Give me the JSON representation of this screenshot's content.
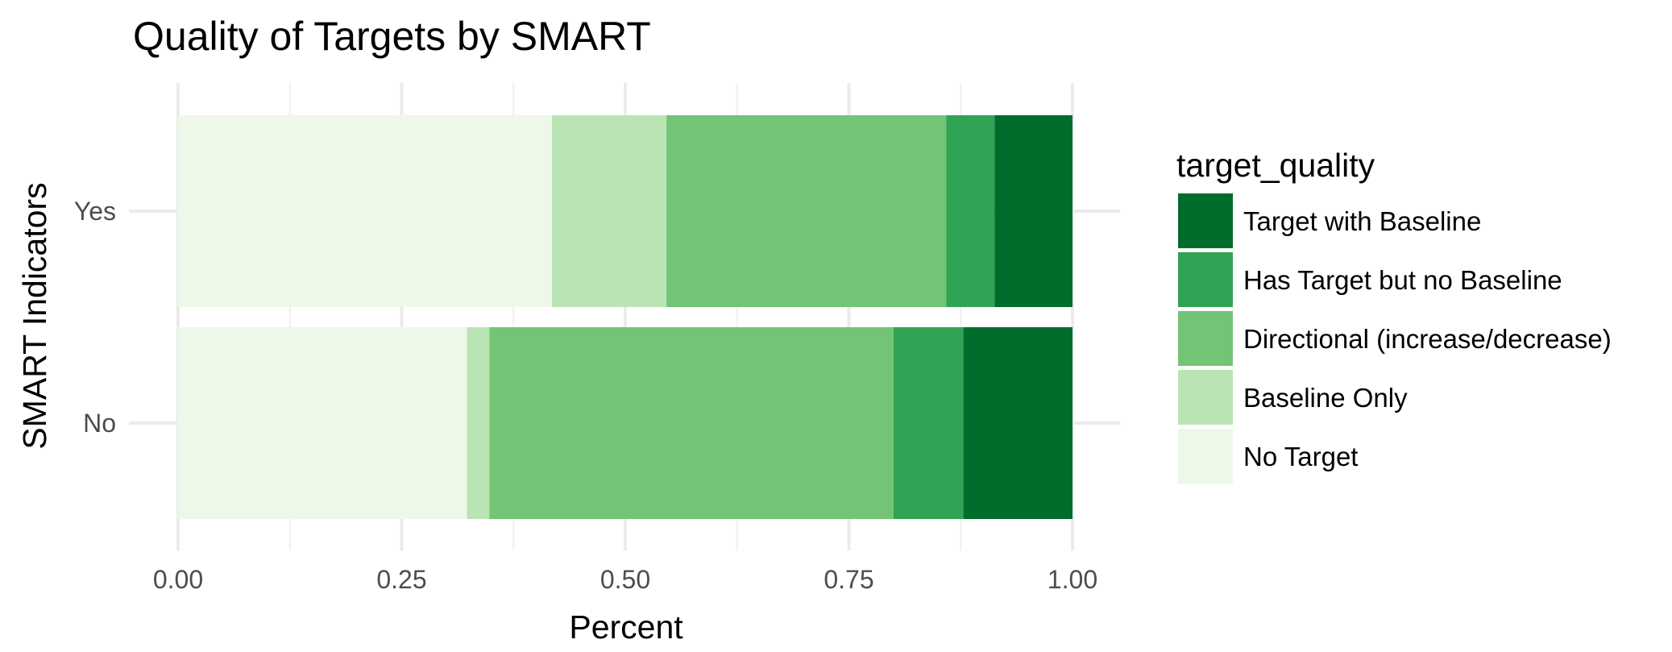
{
  "chart_data": {
    "type": "bar",
    "orientation": "horizontal",
    "stacked": true,
    "title": "Quality of Targets by SMART",
    "xlabel": "Percent",
    "ylabel": "SMART Indicators",
    "xlim": [
      0,
      1
    ],
    "x_ticks": [
      "0.00",
      "0.25",
      "0.50",
      "0.75",
      "1.00"
    ],
    "categories": [
      "Yes",
      "No"
    ],
    "grid": true,
    "legend": {
      "title": "target_quality",
      "position": "right"
    },
    "series": [
      {
        "name": "No Target",
        "color": "#edf8e9",
        "values": [
          0.418,
          0.323
        ]
      },
      {
        "name": "Baseline Only",
        "color": "#bae4b3",
        "values": [
          0.128,
          0.025
        ]
      },
      {
        "name": "Directional (increase/decrease)",
        "color": "#74c476",
        "values": [
          0.313,
          0.452
        ]
      },
      {
        "name": "Has Target but no Baseline",
        "color": "#31a354",
        "values": [
          0.054,
          0.078
        ]
      },
      {
        "name": "Target with Baseline",
        "color": "#006d2c",
        "values": [
          0.087,
          0.122
        ]
      }
    ]
  }
}
